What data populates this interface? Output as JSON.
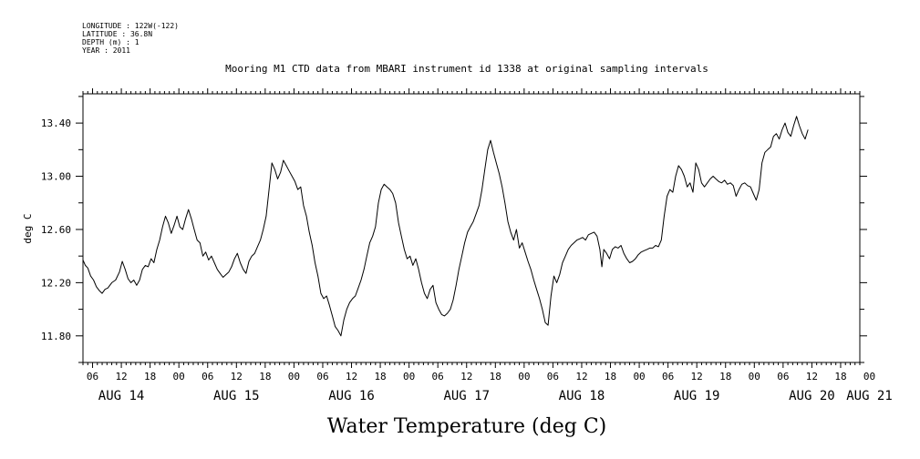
{
  "header": {
    "meta_lines": [
      "LONGITUDE : 122W(-122)",
      "LATITUDE : 36.8N",
      "DEPTH (m) : 1",
      "YEAR : 2011"
    ],
    "title": "Mooring M1 CTD data from MBARI instrument id 1338 at original sampling intervals"
  },
  "chart_data": {
    "type": "line",
    "title": "Mooring M1 CTD data from MBARI instrument id 1338 at original sampling intervals",
    "xlabel": "Water Temperature (deg C)",
    "ylabel": "deg C",
    "ylim": [
      11.6,
      13.62
    ],
    "xlim": [
      4.0,
      166.0
    ],
    "x_unit": "hours since AUG 14 00:00",
    "yticks": [
      "11.80",
      "12.20",
      "12.60",
      "13.00",
      "13.40"
    ],
    "ytick_values": [
      11.8,
      12.2,
      12.6,
      13.0,
      13.4
    ],
    "hour_ticks": [
      "06",
      "12",
      "18",
      "00",
      "06",
      "12",
      "18",
      "00",
      "06",
      "12",
      "18",
      "00",
      "06",
      "12",
      "18",
      "00",
      "06",
      "12",
      "18",
      "00",
      "06",
      "12",
      "18",
      "00",
      "06",
      "12",
      "18",
      "00",
      "00"
    ],
    "hour_tick_values": [
      6,
      12,
      18,
      24,
      30,
      36,
      42,
      48,
      54,
      60,
      66,
      72,
      78,
      84,
      90,
      96,
      102,
      108,
      114,
      120,
      126,
      132,
      138,
      144,
      150,
      156,
      162,
      168,
      168
    ],
    "day_labels": [
      "AUG 14",
      "AUG 15",
      "AUG 16",
      "AUG 17",
      "AUG 18",
      "AUG 19",
      "AUG 20",
      "AUG 21"
    ],
    "day_label_hours": [
      12,
      36,
      60,
      84,
      108,
      132,
      156,
      168
    ],
    "grid": false,
    "series": [
      {
        "color": "#000000",
        "points": [
          [
            4.0,
            12.37
          ],
          [
            4.5,
            12.33
          ],
          [
            5.0,
            12.31
          ],
          [
            5.6,
            12.25
          ],
          [
            6.2,
            12.22
          ],
          [
            6.8,
            12.17
          ],
          [
            7.4,
            12.14
          ],
          [
            8.0,
            12.12
          ],
          [
            8.6,
            12.15
          ],
          [
            9.2,
            12.16
          ],
          [
            10.0,
            12.2
          ],
          [
            10.8,
            12.22
          ],
          [
            11.6,
            12.28
          ],
          [
            12.2,
            12.36
          ],
          [
            12.8,
            12.3
          ],
          [
            13.4,
            12.23
          ],
          [
            14.0,
            12.2
          ],
          [
            14.6,
            12.22
          ],
          [
            15.2,
            12.18
          ],
          [
            15.8,
            12.22
          ],
          [
            16.4,
            12.3
          ],
          [
            17.0,
            12.33
          ],
          [
            17.6,
            12.32
          ],
          [
            18.2,
            12.38
          ],
          [
            18.8,
            12.35
          ],
          [
            19.4,
            12.45
          ],
          [
            20.0,
            12.52
          ],
          [
            20.6,
            12.62
          ],
          [
            21.2,
            12.7
          ],
          [
            21.8,
            12.65
          ],
          [
            22.4,
            12.57
          ],
          [
            23.0,
            12.63
          ],
          [
            23.6,
            12.7
          ],
          [
            24.2,
            12.62
          ],
          [
            24.8,
            12.6
          ],
          [
            25.4,
            12.68
          ],
          [
            26.0,
            12.75
          ],
          [
            26.6,
            12.68
          ],
          [
            27.2,
            12.6
          ],
          [
            27.8,
            12.52
          ],
          [
            28.4,
            12.5
          ],
          [
            29.0,
            12.4
          ],
          [
            29.6,
            12.43
          ],
          [
            30.2,
            12.37
          ],
          [
            30.8,
            12.4
          ],
          [
            31.4,
            12.35
          ],
          [
            32.0,
            12.3
          ],
          [
            32.6,
            12.27
          ],
          [
            33.2,
            12.24
          ],
          [
            33.8,
            12.26
          ],
          [
            34.4,
            12.28
          ],
          [
            35.0,
            12.32
          ],
          [
            35.6,
            12.38
          ],
          [
            36.2,
            12.42
          ],
          [
            36.8,
            12.35
          ],
          [
            37.4,
            12.3
          ],
          [
            38.0,
            12.27
          ],
          [
            38.6,
            12.36
          ],
          [
            39.2,
            12.4
          ],
          [
            39.8,
            12.42
          ],
          [
            40.4,
            12.47
          ],
          [
            41.0,
            12.52
          ],
          [
            41.6,
            12.6
          ],
          [
            42.2,
            12.7
          ],
          [
            42.8,
            12.9
          ],
          [
            43.4,
            13.1
          ],
          [
            44.0,
            13.05
          ],
          [
            44.6,
            12.98
          ],
          [
            45.2,
            13.03
          ],
          [
            45.8,
            13.12
          ],
          [
            46.4,
            13.08
          ],
          [
            47.0,
            13.04
          ],
          [
            47.6,
            13.0
          ],
          [
            48.2,
            12.96
          ],
          [
            48.8,
            12.9
          ],
          [
            49.4,
            12.92
          ],
          [
            50.0,
            12.78
          ],
          [
            50.6,
            12.7
          ],
          [
            51.2,
            12.58
          ],
          [
            51.8,
            12.48
          ],
          [
            52.4,
            12.35
          ],
          [
            53.0,
            12.25
          ],
          [
            53.6,
            12.12
          ],
          [
            54.2,
            12.08
          ],
          [
            54.8,
            12.1
          ],
          [
            55.4,
            12.03
          ],
          [
            56.0,
            11.95
          ],
          [
            56.6,
            11.87
          ],
          [
            57.2,
            11.84
          ],
          [
            57.8,
            11.8
          ],
          [
            58.4,
            11.92
          ],
          [
            59.0,
            12.0
          ],
          [
            59.6,
            12.05
          ],
          [
            60.2,
            12.08
          ],
          [
            60.8,
            12.1
          ],
          [
            61.4,
            12.16
          ],
          [
            62.0,
            12.22
          ],
          [
            62.6,
            12.3
          ],
          [
            63.2,
            12.4
          ],
          [
            63.8,
            12.5
          ],
          [
            64.4,
            12.55
          ],
          [
            65.0,
            12.62
          ],
          [
            65.6,
            12.8
          ],
          [
            66.2,
            12.9
          ],
          [
            66.8,
            12.94
          ],
          [
            67.4,
            12.92
          ],
          [
            68.0,
            12.9
          ],
          [
            68.6,
            12.87
          ],
          [
            69.2,
            12.8
          ],
          [
            69.8,
            12.65
          ],
          [
            70.4,
            12.55
          ],
          [
            71.0,
            12.45
          ],
          [
            71.6,
            12.38
          ],
          [
            72.2,
            12.4
          ],
          [
            72.8,
            12.33
          ],
          [
            73.4,
            12.38
          ],
          [
            74.0,
            12.3
          ],
          [
            74.6,
            12.2
          ],
          [
            75.2,
            12.12
          ],
          [
            75.8,
            12.08
          ],
          [
            76.4,
            12.15
          ],
          [
            77.0,
            12.18
          ],
          [
            77.6,
            12.05
          ],
          [
            78.2,
            12.0
          ],
          [
            78.8,
            11.96
          ],
          [
            79.4,
            11.95
          ],
          [
            80.0,
            11.97
          ],
          [
            80.6,
            12.0
          ],
          [
            81.2,
            12.07
          ],
          [
            81.8,
            12.18
          ],
          [
            82.4,
            12.3
          ],
          [
            83.0,
            12.4
          ],
          [
            83.6,
            12.5
          ],
          [
            84.2,
            12.58
          ],
          [
            84.8,
            12.62
          ],
          [
            85.4,
            12.66
          ],
          [
            86.0,
            12.72
          ],
          [
            86.6,
            12.78
          ],
          [
            87.2,
            12.9
          ],
          [
            87.8,
            13.05
          ],
          [
            88.4,
            13.2
          ],
          [
            89.0,
            13.27
          ],
          [
            89.6,
            13.18
          ],
          [
            90.2,
            13.1
          ],
          [
            90.8,
            13.02
          ],
          [
            91.4,
            12.92
          ],
          [
            92.0,
            12.8
          ],
          [
            92.6,
            12.66
          ],
          [
            93.2,
            12.58
          ],
          [
            93.8,
            12.52
          ],
          [
            94.4,
            12.6
          ],
          [
            95.0,
            12.46
          ],
          [
            95.6,
            12.5
          ],
          [
            96.2,
            12.43
          ],
          [
            96.8,
            12.36
          ],
          [
            97.4,
            12.3
          ],
          [
            98.0,
            12.22
          ],
          [
            98.6,
            12.15
          ],
          [
            99.2,
            12.08
          ],
          [
            99.8,
            12.0
          ],
          [
            100.4,
            11.9
          ],
          [
            101.0,
            11.88
          ],
          [
            101.6,
            12.1
          ],
          [
            102.2,
            12.25
          ],
          [
            102.8,
            12.2
          ],
          [
            103.4,
            12.26
          ],
          [
            104.0,
            12.35
          ],
          [
            104.6,
            12.4
          ],
          [
            105.2,
            12.45
          ],
          [
            105.8,
            12.48
          ],
          [
            106.4,
            12.5
          ],
          [
            107.0,
            12.52
          ],
          [
            107.6,
            12.53
          ],
          [
            108.2,
            12.54
          ],
          [
            108.8,
            12.52
          ],
          [
            109.4,
            12.56
          ],
          [
            110.0,
            12.57
          ],
          [
            110.6,
            12.58
          ],
          [
            111.2,
            12.55
          ],
          [
            111.8,
            12.45
          ],
          [
            112.2,
            12.32
          ],
          [
            112.6,
            12.45
          ],
          [
            113.2,
            12.42
          ],
          [
            113.8,
            12.38
          ],
          [
            114.4,
            12.45
          ],
          [
            115.0,
            12.47
          ],
          [
            115.6,
            12.46
          ],
          [
            116.2,
            12.48
          ],
          [
            116.8,
            12.42
          ],
          [
            117.4,
            12.38
          ],
          [
            118.0,
            12.35
          ],
          [
            118.6,
            12.36
          ],
          [
            119.2,
            12.38
          ],
          [
            119.8,
            12.41
          ],
          [
            120.4,
            12.43
          ],
          [
            121.0,
            12.44
          ],
          [
            121.6,
            12.45
          ],
          [
            122.2,
            12.46
          ],
          [
            122.8,
            12.46
          ],
          [
            123.4,
            12.48
          ],
          [
            124.0,
            12.47
          ],
          [
            124.6,
            12.52
          ],
          [
            125.2,
            12.7
          ],
          [
            125.8,
            12.85
          ],
          [
            126.4,
            12.9
          ],
          [
            127.0,
            12.88
          ],
          [
            127.6,
            13.0
          ],
          [
            128.2,
            13.08
          ],
          [
            128.8,
            13.05
          ],
          [
            129.4,
            13.0
          ],
          [
            130.0,
            12.92
          ],
          [
            130.6,
            12.95
          ],
          [
            131.2,
            12.88
          ],
          [
            131.8,
            13.1
          ],
          [
            132.4,
            13.05
          ],
          [
            133.0,
            12.95
          ],
          [
            133.6,
            12.92
          ],
          [
            134.2,
            12.95
          ],
          [
            134.8,
            12.98
          ],
          [
            135.4,
            13.0
          ],
          [
            136.0,
            12.98
          ],
          [
            136.6,
            12.96
          ],
          [
            137.2,
            12.95
          ],
          [
            137.8,
            12.97
          ],
          [
            138.4,
            12.94
          ],
          [
            139.0,
            12.95
          ],
          [
            139.6,
            12.93
          ],
          [
            140.2,
            12.85
          ],
          [
            140.8,
            12.9
          ],
          [
            141.4,
            12.94
          ],
          [
            142.0,
            12.95
          ],
          [
            142.6,
            12.93
          ],
          [
            143.2,
            12.92
          ],
          [
            143.8,
            12.87
          ],
          [
            144.4,
            12.82
          ],
          [
            145.0,
            12.9
          ],
          [
            145.6,
            13.1
          ],
          [
            146.2,
            13.18
          ],
          [
            146.8,
            13.2
          ],
          [
            147.4,
            13.22
          ],
          [
            148.0,
            13.3
          ],
          [
            148.6,
            13.32
          ],
          [
            149.2,
            13.28
          ],
          [
            149.8,
            13.35
          ],
          [
            150.4,
            13.4
          ],
          [
            151.0,
            13.33
          ],
          [
            151.6,
            13.3
          ],
          [
            152.2,
            13.38
          ],
          [
            152.8,
            13.45
          ],
          [
            153.4,
            13.38
          ],
          [
            154.0,
            13.32
          ],
          [
            154.6,
            13.28
          ],
          [
            155.2,
            13.35
          ]
        ]
      }
    ]
  }
}
